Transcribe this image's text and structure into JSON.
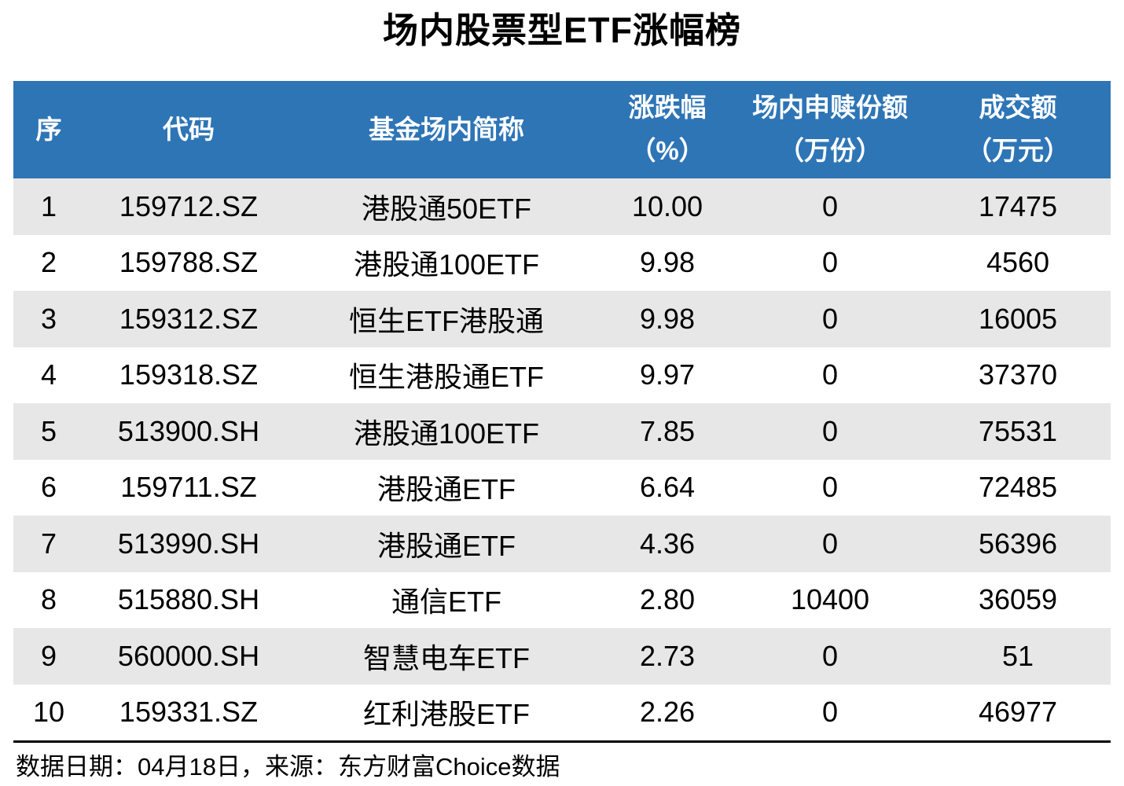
{
  "title": "场内股票型ETF涨幅榜",
  "table": {
    "columns": [
      {
        "key": "rank",
        "label": "序",
        "unit": ""
      },
      {
        "key": "code",
        "label": "代码",
        "unit": ""
      },
      {
        "key": "name",
        "label": "基金场内简称",
        "unit": ""
      },
      {
        "key": "change",
        "label": "涨跌幅",
        "unit": "（%）"
      },
      {
        "key": "shares",
        "label": "场内申赎份额",
        "unit": "（万份）"
      },
      {
        "key": "turnover",
        "label": "成交额",
        "unit": "（万元）"
      }
    ],
    "rows": [
      {
        "rank": "1",
        "code": "159712.SZ",
        "name": "港股通50ETF",
        "change": "10.00",
        "shares": "0",
        "turnover": "17475"
      },
      {
        "rank": "2",
        "code": "159788.SZ",
        "name": "港股通100ETF",
        "change": "9.98",
        "shares": "0",
        "turnover": "4560"
      },
      {
        "rank": "3",
        "code": "159312.SZ",
        "name": "恒生ETF港股通",
        "change": "9.98",
        "shares": "0",
        "turnover": "16005"
      },
      {
        "rank": "4",
        "code": "159318.SZ",
        "name": "恒生港股通ETF",
        "change": "9.97",
        "shares": "0",
        "turnover": "37370"
      },
      {
        "rank": "5",
        "code": "513900.SH",
        "name": "港股通100ETF",
        "change": "7.85",
        "shares": "0",
        "turnover": "75531"
      },
      {
        "rank": "6",
        "code": "159711.SZ",
        "name": "港股通ETF",
        "change": "6.64",
        "shares": "0",
        "turnover": "72485"
      },
      {
        "rank": "7",
        "code": "513990.SH",
        "name": "港股通ETF",
        "change": "4.36",
        "shares": "0",
        "turnover": "56396"
      },
      {
        "rank": "8",
        "code": "515880.SH",
        "name": "通信ETF",
        "change": "2.80",
        "shares": "10400",
        "turnover": "36059"
      },
      {
        "rank": "9",
        "code": "560000.SH",
        "name": "智慧电车ETF",
        "change": "2.73",
        "shares": "0",
        "turnover": "51"
      },
      {
        "rank": "10",
        "code": "159331.SZ",
        "name": "红利港股ETF",
        "change": "2.26",
        "shares": "0",
        "turnover": "46977"
      }
    ]
  },
  "footer": {
    "text": "数据日期：04月18日，来源：东方财富Choice数据"
  },
  "colors": {
    "header_bg": "#2E75B6",
    "header_text": "#FFFFFF",
    "row_alt_bg": "#E7E7E7",
    "row_bg": "#FFFFFF",
    "divider": "#000000",
    "text": "#000000"
  },
  "chart_data": {
    "type": "table",
    "title": "场内股票型ETF涨幅榜",
    "columns": [
      "序",
      "代码",
      "基金场内简称",
      "涨跌幅（%）",
      "场内申赎份额（万份）",
      "成交额（万元）"
    ],
    "rows": [
      [
        1,
        "159712.SZ",
        "港股通50ETF",
        10.0,
        0,
        17475
      ],
      [
        2,
        "159788.SZ",
        "港股通100ETF",
        9.98,
        0,
        4560
      ],
      [
        3,
        "159312.SZ",
        "恒生ETF港股通",
        9.98,
        0,
        16005
      ],
      [
        4,
        "159318.SZ",
        "恒生港股通ETF",
        9.97,
        0,
        37370
      ],
      [
        5,
        "513900.SH",
        "港股通100ETF",
        7.85,
        0,
        75531
      ],
      [
        6,
        "159711.SZ",
        "港股通ETF",
        6.64,
        0,
        72485
      ],
      [
        7,
        "513990.SH",
        "港股通ETF",
        4.36,
        0,
        56396
      ],
      [
        8,
        "515880.SH",
        "通信ETF",
        2.8,
        10400,
        36059
      ],
      [
        9,
        "560000.SH",
        "智慧电车ETF",
        2.73,
        0,
        51
      ],
      [
        10,
        "159331.SZ",
        "红利港股ETF",
        2.26,
        0,
        46977
      ]
    ],
    "source_note": "数据日期：04月18日，来源：东方财富Choice数据",
    "layout": {
      "zebra_striping": true,
      "header_style": "blue-banner",
      "alignment": "center"
    }
  }
}
